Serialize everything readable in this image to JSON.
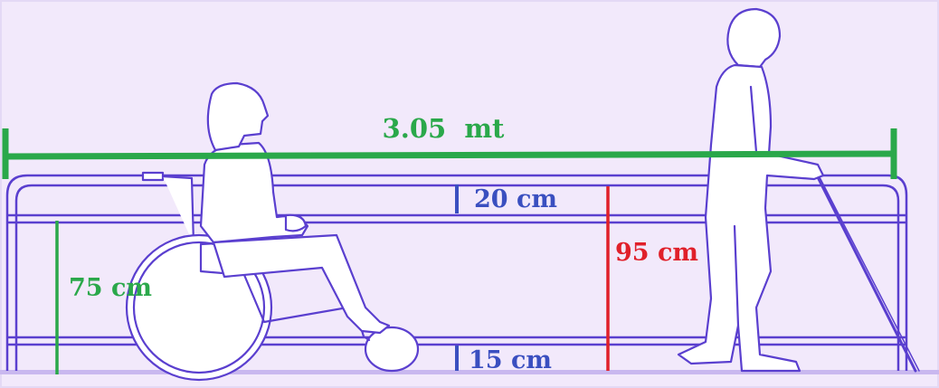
{
  "colors": {
    "background": "#f2e9fb",
    "outline": "#5a3fcf",
    "green": "#2aa84a",
    "blue": "#3a4fc0",
    "red": "#e0202a",
    "floor": "#c9b8ef"
  },
  "labels": {
    "total_length": "3.05  mt",
    "top_gap": "20 cm",
    "rail_height": "95 cm",
    "lower_rail_height": "75 cm",
    "bottom_gap": "15 cm"
  },
  "figures": {
    "wheelchair_user": "wheelchair-user-icon",
    "pedestrian_with_cane": "pedestrian-with-cane-icon"
  }
}
